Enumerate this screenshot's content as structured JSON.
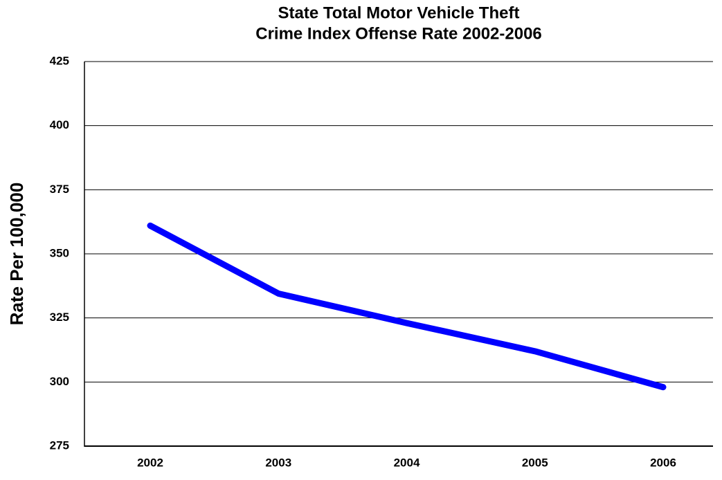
{
  "chart_data": {
    "type": "line",
    "title": [
      "State Total Motor Vehicle Theft",
      "Crime Index Offense Rate 2002-2006"
    ],
    "y_label": "Rate Per 100,000",
    "categories": [
      "2002",
      "2003",
      "2004",
      "2005",
      "2006"
    ],
    "values": [
      361,
      334.5,
      323,
      312,
      298
    ],
    "color": "#0000ff",
    "ylim": [
      275,
      425
    ],
    "yticks": [
      275,
      300,
      325,
      350,
      375,
      400,
      425
    ],
    "grid": true
  }
}
